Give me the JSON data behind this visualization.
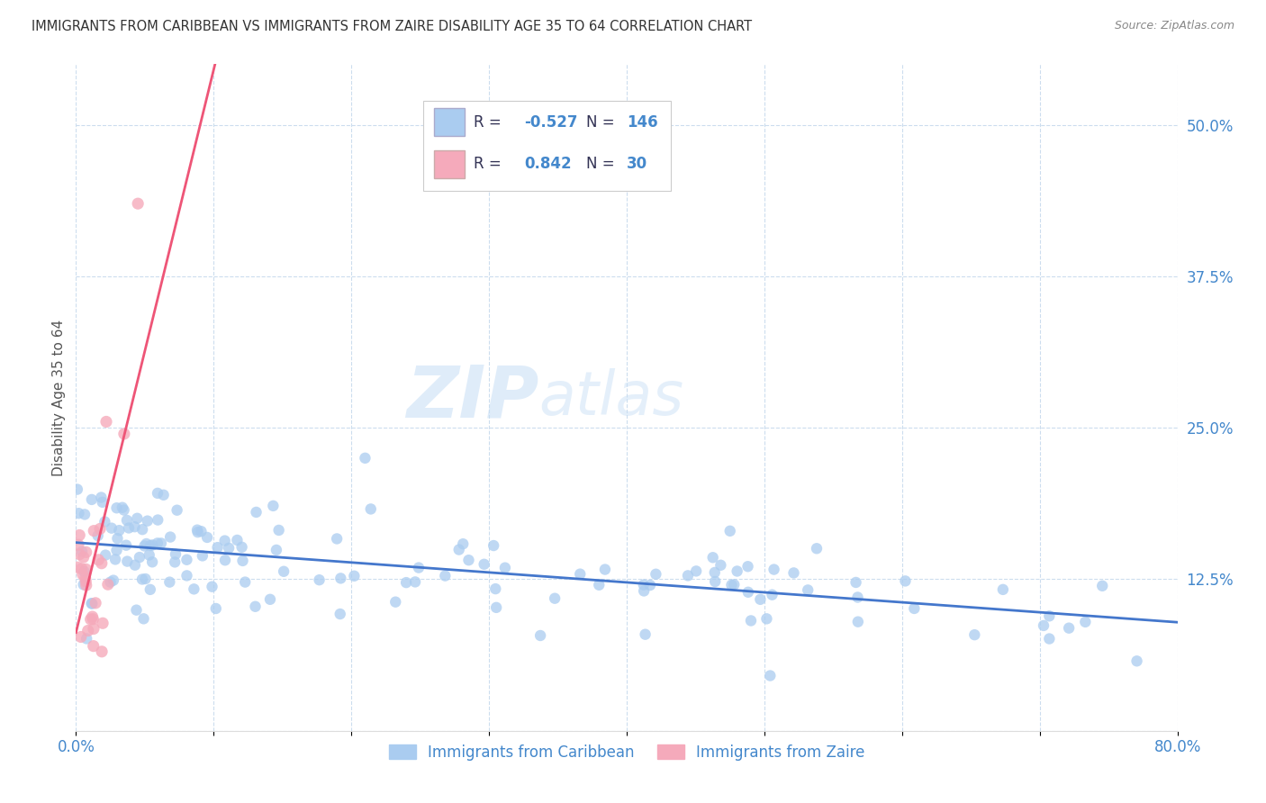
{
  "title": "IMMIGRANTS FROM CARIBBEAN VS IMMIGRANTS FROM ZAIRE DISABILITY AGE 35 TO 64 CORRELATION CHART",
  "source": "Source: ZipAtlas.com",
  "ylabel": "Disability Age 35 to 64",
  "x_min": 0.0,
  "x_max": 0.8,
  "y_min": 0.0,
  "y_max": 0.55,
  "watermark_zip": "ZIP",
  "watermark_atlas": "atlas",
  "legend_R1": "-0.527",
  "legend_N1": "146",
  "legend_R2": "0.842",
  "legend_N2": "30",
  "color_caribbean": "#aaccf0",
  "color_zaire": "#f5aabb",
  "color_line_caribbean": "#4477cc",
  "color_line_zaire": "#ee5577",
  "background_color": "#ffffff",
  "grid_color": "#ccddee",
  "title_color": "#333333",
  "right_axis_color": "#4488cc",
  "legend_label1": "Immigrants from Caribbean",
  "legend_label2": "Immigrants from Zaire",
  "legend_text_color": "#4488cc",
  "legend_R_color": "#4488cc",
  "legend_N_color": "#4488cc"
}
